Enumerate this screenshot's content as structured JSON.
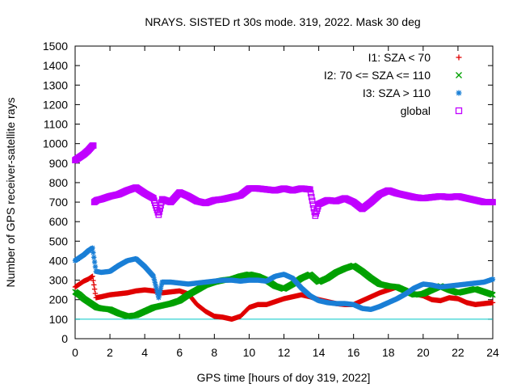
{
  "chart_data": {
    "type": "scatter",
    "title": "NRAYS. SISTED rt 30s mode. 319, 2022. Mask 30 deg",
    "xlabel": "GPS time [hours of doy 319, 2022]",
    "ylabel": "Number of GPS receiver-satellite rays",
    "xlim": [
      0,
      24
    ],
    "ylim": [
      0,
      1500
    ],
    "xticks": [
      "0",
      "2",
      "4",
      "6",
      "8",
      "10",
      "12",
      "14",
      "16",
      "18",
      "20",
      "22",
      "24"
    ],
    "yticks": [
      "0",
      "100",
      "200",
      "300",
      "400",
      "500",
      "600",
      "700",
      "800",
      "900",
      "1000",
      "1100",
      "1200",
      "1300",
      "1400",
      "1500"
    ],
    "reference_line": {
      "y": 100,
      "color": "#00c8c8"
    },
    "legend_position": "top-right",
    "series": [
      {
        "name": "I1: SZA < 70",
        "marker": "plus",
        "color": "#e00000",
        "x": [
          0,
          0.25,
          0.5,
          0.75,
          1.0,
          1.2,
          1.5,
          2,
          2.5,
          3,
          3.5,
          4,
          4.5,
          5,
          5.5,
          6,
          6.5,
          7,
          7.5,
          8,
          8.5,
          9,
          9.5,
          10,
          10.5,
          11,
          11.5,
          12,
          12.5,
          13,
          13.5,
          14,
          14.5,
          15,
          15.5,
          16,
          16.5,
          17,
          17.5,
          18,
          18.5,
          19,
          19.5,
          20,
          20.5,
          21,
          21.5,
          22,
          22.5,
          23,
          23.5,
          24
        ],
        "y": [
          265,
          280,
          295,
          305,
          320,
          210,
          215,
          225,
          230,
          235,
          245,
          250,
          245,
          235,
          240,
          245,
          230,
          175,
          140,
          115,
          110,
          100,
          115,
          160,
          175,
          175,
          190,
          205,
          215,
          225,
          215,
          200,
          190,
          180,
          175,
          175,
          195,
          215,
          235,
          250,
          265,
          250,
          230,
          220,
          200,
          195,
          210,
          205,
          185,
          175,
          180,
          185
        ]
      },
      {
        "name": "I2: 70 <= SZA <= 110",
        "marker": "cross",
        "color": "#00a000",
        "x": [
          0,
          0.25,
          0.5,
          0.75,
          1.0,
          1.25,
          1.5,
          2,
          2.5,
          3,
          3.5,
          4,
          4.5,
          5,
          5.5,
          6,
          6.5,
          7,
          7.5,
          8,
          8.5,
          9,
          9.5,
          10,
          10.5,
          11,
          11.5,
          12,
          12.5,
          13,
          13.5,
          14,
          14.5,
          15,
          15.5,
          16,
          16.5,
          17,
          17.5,
          18,
          18.5,
          19,
          19.5,
          20,
          20.5,
          21,
          21.5,
          22,
          22.5,
          23,
          23.5,
          24
        ],
        "y": [
          240,
          225,
          205,
          190,
          175,
          160,
          155,
          150,
          130,
          115,
          120,
          140,
          160,
          170,
          180,
          195,
          225,
          250,
          275,
          290,
          300,
          305,
          320,
          330,
          320,
          300,
          270,
          255,
          280,
          310,
          330,
          290,
          310,
          340,
          360,
          375,
          345,
          310,
          280,
          270,
          265,
          245,
          225,
          230,
          250,
          270,
          250,
          235,
          245,
          255,
          240,
          225
        ]
      },
      {
        "name": "I3: SZA > 110",
        "marker": "star",
        "color": "#1a7fd6",
        "x": [
          0,
          0.25,
          0.5,
          0.75,
          1.0,
          1.2,
          1.5,
          2,
          2.5,
          3,
          3.5,
          4,
          4.5,
          4.8,
          5,
          5.5,
          6,
          6.5,
          7,
          7.5,
          8,
          8.5,
          9,
          9.5,
          10,
          10.5,
          11,
          11.5,
          12,
          12.5,
          13,
          13.5,
          14,
          14.5,
          15,
          15.5,
          16,
          16.5,
          17,
          17.5,
          18,
          18.5,
          19,
          19.5,
          20,
          20.5,
          21,
          21.5,
          22,
          22.5,
          23,
          23.5,
          24
        ],
        "y": [
          400,
          415,
          430,
          450,
          465,
          345,
          340,
          345,
          375,
          400,
          410,
          370,
          320,
          210,
          290,
          290,
          285,
          280,
          285,
          290,
          295,
          300,
          300,
          295,
          300,
          300,
          295,
          320,
          330,
          310,
          260,
          220,
          195,
          185,
          180,
          180,
          175,
          155,
          150,
          165,
          185,
          205,
          230,
          260,
          280,
          275,
          265,
          270,
          275,
          280,
          285,
          290,
          305
        ]
      },
      {
        "name": "global",
        "marker": "square",
        "color": "#c000ff",
        "x": [
          0,
          0.25,
          0.5,
          0.75,
          1.0,
          1.1,
          1.25,
          1.5,
          2,
          2.5,
          3,
          3.5,
          4,
          4.5,
          4.8,
          5,
          5.5,
          6,
          6.5,
          7,
          7.5,
          8,
          8.5,
          9,
          9.5,
          10,
          10.5,
          11,
          11.5,
          12,
          12.5,
          13,
          13.5,
          13.8,
          14,
          14.5,
          15,
          15.5,
          16,
          16.5,
          17,
          17.5,
          18,
          18.5,
          19,
          19.5,
          20,
          20.5,
          21,
          21.5,
          22,
          22.5,
          23,
          23.5,
          24
        ],
        "y": [
          915,
          930,
          945,
          965,
          990,
          700,
          710,
          715,
          730,
          740,
          760,
          775,
          745,
          720,
          635,
          715,
          700,
          750,
          730,
          705,
          695,
          710,
          715,
          725,
          735,
          770,
          770,
          765,
          760,
          770,
          760,
          770,
          765,
          630,
          690,
          710,
          705,
          720,
          700,
          665,
          700,
          740,
          760,
          745,
          735,
          725,
          720,
          725,
          730,
          725,
          730,
          720,
          710,
          700,
          700
        ]
      }
    ]
  }
}
